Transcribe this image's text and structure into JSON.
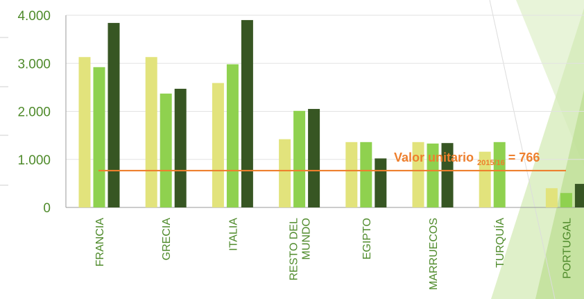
{
  "chart_data": {
    "type": "bar",
    "categories": [
      [
        "FRANCIA"
      ],
      [
        "GRECIA"
      ],
      [
        "ITALIA"
      ],
      [
        "RESTO DEL",
        "MUNDO"
      ],
      [
        "EGIPTO"
      ],
      [
        "MARRUECOS"
      ],
      [
        "TURQUÍA"
      ],
      [
        "PORTUGAL"
      ]
    ],
    "series": [
      {
        "color": "#e2e37c",
        "values": [
          3130,
          3130,
          2590,
          1420,
          1360,
          1360,
          1160,
          400
        ]
      },
      {
        "color": "#8fd14f",
        "values": [
          2920,
          2370,
          2980,
          2010,
          1360,
          1330,
          1360,
          300
        ]
      },
      {
        "color": "#375623",
        "values": [
          3840,
          2470,
          3900,
          2050,
          1020,
          1340,
          null,
          490
        ]
      }
    ],
    "ylim": [
      0,
      4000
    ],
    "yticks": [
      "4.000",
      "3.000",
      "2.000",
      "1.000",
      "0"
    ],
    "ytick_values": [
      4000,
      3000,
      2000,
      1000,
      0
    ],
    "reference_line": {
      "value": 766,
      "color": "#ee7f2d",
      "label": "Valor unitario",
      "label_subscript": "2015/16",
      "label_suffix": "= 766"
    },
    "grid": true,
    "legend": "none"
  }
}
